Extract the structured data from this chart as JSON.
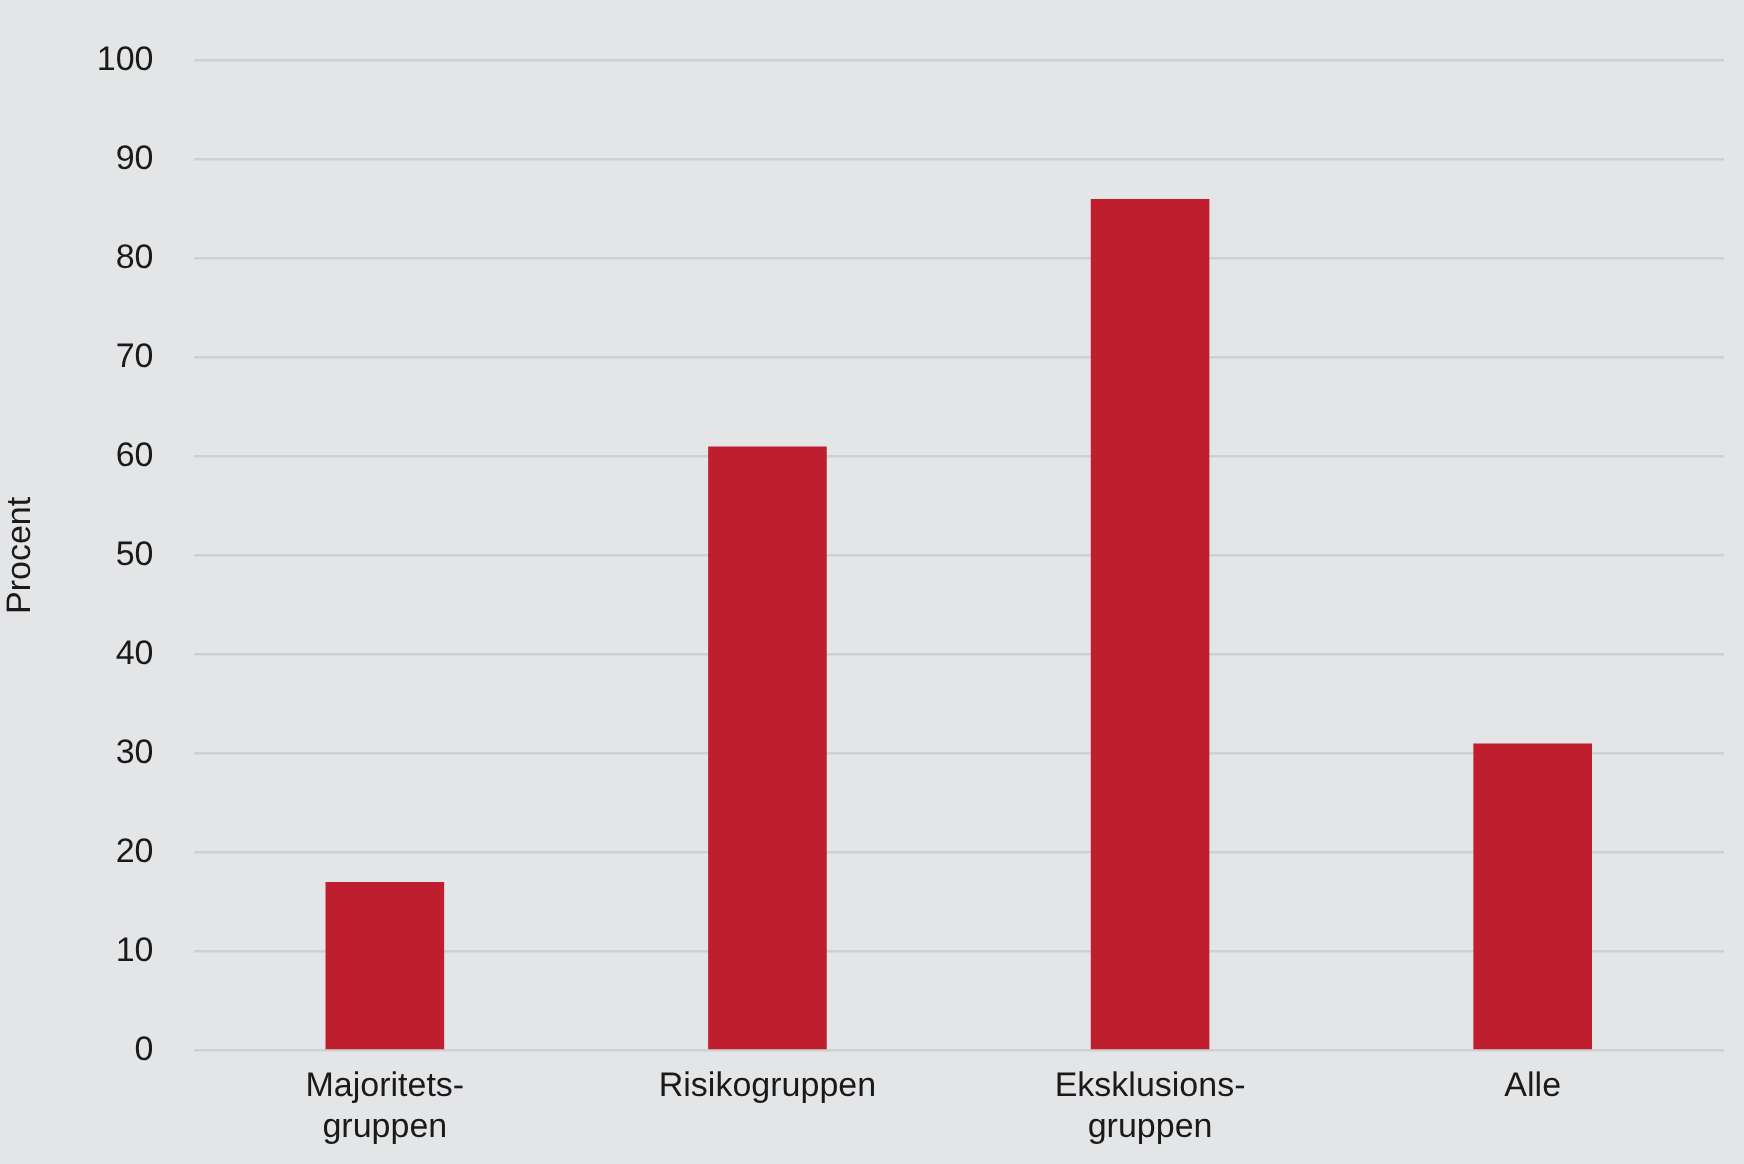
{
  "chart_data": {
    "type": "bar",
    "ylabel": "Procent",
    "categories": [
      "Majoritets-\ngruppen",
      "Risikogruppen",
      "Eksklusions-\ngruppen",
      "Alle"
    ],
    "values": [
      17,
      61,
      86,
      31
    ],
    "color": "#be1e2d",
    "ylim": [
      0,
      100
    ],
    "yticks": [
      0,
      10,
      20,
      30,
      40,
      50,
      60,
      70,
      80,
      90,
      100
    ],
    "grid": "y"
  }
}
